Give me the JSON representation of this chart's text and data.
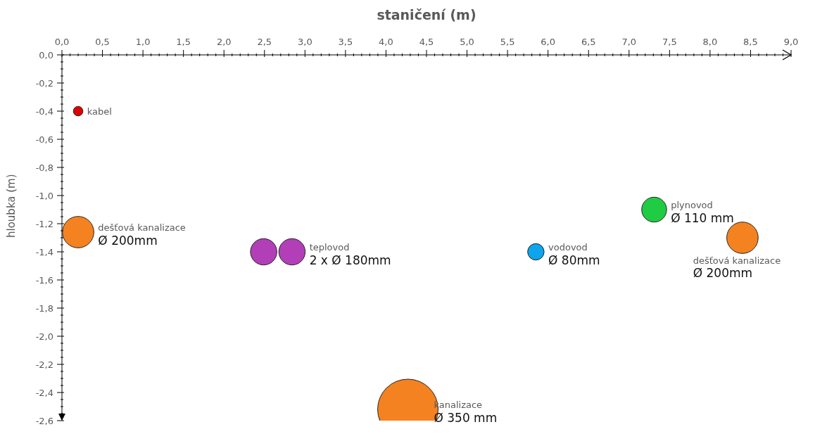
{
  "chart_data": {
    "type": "bubble",
    "title": "staničení (m)",
    "ylabel": "hloubka (m)",
    "x": [
      0.2,
      0.2,
      2.49,
      2.84,
      4.27,
      5.85,
      7.31,
      8.4
    ],
    "values": [
      -0.4,
      -1.26,
      -1.4,
      -1.4,
      -2.52,
      -1.4,
      -1.1,
      -1.3
    ],
    "sizes": [
      0.025,
      0.27,
      0.19,
      0.19,
      1,
      0.074,
      0.17,
      0.27
    ],
    "colors": [
      "#e00000",
      "#f58220",
      "#b23fb8",
      "#b23fb8",
      "#f58220",
      "#0ea5ec",
      "#1fcc44",
      "#f58220"
    ],
    "xlim": [
      0,
      9
    ],
    "xticks": [
      {
        "value": 0,
        "label": "0,0"
      },
      {
        "value": 0.1,
        "label": null
      },
      {
        "value": 0.2,
        "label": null
      },
      {
        "value": 0.3,
        "label": null
      },
      {
        "value": 0.4,
        "label": null
      },
      {
        "value": 0.5,
        "label": "0,5"
      },
      {
        "value": 0.6,
        "label": null
      },
      {
        "value": 0.7,
        "label": null
      },
      {
        "value": 0.8,
        "label": null
      },
      {
        "value": 0.9,
        "label": null
      },
      {
        "value": 1,
        "label": "1,0"
      },
      {
        "value": 1.1,
        "label": null
      },
      {
        "value": 1.2,
        "label": null
      },
      {
        "value": 1.3,
        "label": null
      },
      {
        "value": 1.4,
        "label": null
      },
      {
        "value": 1.5,
        "label": "1,5"
      },
      {
        "value": 1.6,
        "label": null
      },
      {
        "value": 1.7,
        "label": null
      },
      {
        "value": 1.8,
        "label": null
      },
      {
        "value": 1.9,
        "label": null
      },
      {
        "value": 2,
        "label": "2,0"
      },
      {
        "value": 2.1,
        "label": null
      },
      {
        "value": 2.2,
        "label": null
      },
      {
        "value": 2.3,
        "label": null
      },
      {
        "value": 2.4,
        "label": null
      },
      {
        "value": 2.5,
        "label": "2,5"
      },
      {
        "value": 2.6,
        "label": null
      },
      {
        "value": 2.7,
        "label": null
      },
      {
        "value": 2.8,
        "label": null
      },
      {
        "value": 2.9,
        "label": null
      },
      {
        "value": 3,
        "label": "3,0"
      },
      {
        "value": 3.1,
        "label": null
      },
      {
        "value": 3.2,
        "label": null
      },
      {
        "value": 3.3,
        "label": null
      },
      {
        "value": 3.4,
        "label": null
      },
      {
        "value": 3.5,
        "label": "3,5"
      },
      {
        "value": 3.6,
        "label": null
      },
      {
        "value": 3.7,
        "label": null
      },
      {
        "value": 3.8,
        "label": null
      },
      {
        "value": 3.9,
        "label": null
      },
      {
        "value": 4,
        "label": "4,0"
      },
      {
        "value": 4.1,
        "label": null
      },
      {
        "value": 4.2,
        "label": null
      },
      {
        "value": 4.3,
        "label": null
      },
      {
        "value": 4.4,
        "label": null
      },
      {
        "value": 4.5,
        "label": "4,5"
      },
      {
        "value": 4.6,
        "label": null
      },
      {
        "value": 4.7,
        "label": null
      },
      {
        "value": 4.8,
        "label": null
      },
      {
        "value": 4.9,
        "label": null
      },
      {
        "value": 5,
        "label": "5,0"
      },
      {
        "value": 5.1,
        "label": null
      },
      {
        "value": 5.2,
        "label": null
      },
      {
        "value": 5.3,
        "label": null
      },
      {
        "value": 5.4,
        "label": null
      },
      {
        "value": 5.5,
        "label": "5,5"
      },
      {
        "value": 5.6,
        "label": null
      },
      {
        "value": 5.7,
        "label": null
      },
      {
        "value": 5.8,
        "label": null
      },
      {
        "value": 5.9,
        "label": null
      },
      {
        "value": 6,
        "label": "6,0"
      },
      {
        "value": 6.1,
        "label": null
      },
      {
        "value": 6.2,
        "label": null
      },
      {
        "value": 6.3,
        "label": null
      },
      {
        "value": 6.4,
        "label": null
      },
      {
        "value": 6.5,
        "label": "6,5"
      },
      {
        "value": 6.6,
        "label": null
      },
      {
        "value": 6.7,
        "label": null
      },
      {
        "value": 6.8,
        "label": null
      },
      {
        "value": 6.9,
        "label": null
      },
      {
        "value": 7,
        "label": "7,0"
      },
      {
        "value": 7.1,
        "label": null
      },
      {
        "value": 7.2,
        "label": null
      },
      {
        "value": 7.3,
        "label": null
      },
      {
        "value": 7.4,
        "label": null
      },
      {
        "value": 7.5,
        "label": "7,5"
      },
      {
        "value": 7.6,
        "label": null
      },
      {
        "value": 7.7,
        "label": null
      },
      {
        "value": 7.8,
        "label": null
      },
      {
        "value": 7.9,
        "label": null
      },
      {
        "value": 8,
        "label": "8,0"
      },
      {
        "value": 8.1,
        "label": null
      },
      {
        "value": 8.2,
        "label": null
      },
      {
        "value": 8.3,
        "label": null
      },
      {
        "value": 8.4,
        "label": null
      },
      {
        "value": 8.5,
        "label": "8,5"
      },
      {
        "value": 8.6,
        "label": null
      },
      {
        "value": 8.7,
        "label": null
      },
      {
        "value": 8.8,
        "label": null
      },
      {
        "value": 8.9,
        "label": null
      },
      {
        "value": 9,
        "label": "9,0"
      }
    ],
    "ylim": [
      -2.6,
      0
    ],
    "yticks": [
      {
        "value": 0,
        "label": "0,0"
      },
      {
        "value": -0.05,
        "label": null
      },
      {
        "value": -0.1,
        "label": null
      },
      {
        "value": -0.15,
        "label": null
      },
      {
        "value": -0.2,
        "label": "-0,2"
      },
      {
        "value": -0.25,
        "label": null
      },
      {
        "value": -0.3,
        "label": null
      },
      {
        "value": -0.35,
        "label": null
      },
      {
        "value": -0.4,
        "label": "-0,4"
      },
      {
        "value": -0.45,
        "label": null
      },
      {
        "value": -0.5,
        "label": null
      },
      {
        "value": -0.55,
        "label": null
      },
      {
        "value": -0.6,
        "label": "-0,6"
      },
      {
        "value": -0.65,
        "label": null
      },
      {
        "value": -0.7,
        "label": null
      },
      {
        "value": -0.75,
        "label": null
      },
      {
        "value": -0.8,
        "label": "-0,8"
      },
      {
        "value": -0.85,
        "label": null
      },
      {
        "value": -0.9,
        "label": null
      },
      {
        "value": -0.95,
        "label": null
      },
      {
        "value": -1,
        "label": "-1,0"
      },
      {
        "value": -1.05,
        "label": null
      },
      {
        "value": -1.1,
        "label": null
      },
      {
        "value": -1.15,
        "label": null
      },
      {
        "value": -1.2,
        "label": "-1,2"
      },
      {
        "value": -1.25,
        "label": null
      },
      {
        "value": -1.3,
        "label": null
      },
      {
        "value": -1.35,
        "label": null
      },
      {
        "value": -1.4,
        "label": "-1,4"
      },
      {
        "value": -1.45,
        "label": null
      },
      {
        "value": -1.5,
        "label": null
      },
      {
        "value": -1.55,
        "label": null
      },
      {
        "value": -1.6,
        "label": "-1,6"
      },
      {
        "value": -1.65,
        "label": null
      },
      {
        "value": -1.7,
        "label": null
      },
      {
        "value": -1.75,
        "label": null
      },
      {
        "value": -1.8,
        "label": "-1,8"
      },
      {
        "value": -1.85,
        "label": null
      },
      {
        "value": -1.9,
        "label": null
      },
      {
        "value": -1.95,
        "label": null
      },
      {
        "value": -2,
        "label": "-2,0"
      },
      {
        "value": -2.05,
        "label": null
      },
      {
        "value": -2.1,
        "label": null
      },
      {
        "value": -2.15,
        "label": null
      },
      {
        "value": -2.2,
        "label": "-2,2"
      },
      {
        "value": -2.25,
        "label": null
      },
      {
        "value": -2.3,
        "label": null
      },
      {
        "value": -2.35,
        "label": null
      },
      {
        "value": -2.4,
        "label": "-2,4"
      },
      {
        "value": -2.45,
        "label": null
      },
      {
        "value": -2.5,
        "label": null
      },
      {
        "value": -2.55,
        "label": null
      },
      {
        "value": -2.6,
        "label": "-2,6"
      }
    ],
    "annotations": [
      {
        "text": "dešťová kanalizace",
        "x": 0.2,
        "y": -1.26
      },
      {
        "text": "Ø 200mm",
        "x": 0.2,
        "y": -1.26
      },
      {
        "text": "teplovod",
        "x": 2.84,
        "y": -1.4
      },
      {
        "text": "2 x Ø 180mm",
        "x": 2.84,
        "y": -1.4
      },
      {
        "text": "kanalizace",
        "x": 4.27,
        "y": -2.52
      },
      {
        "text": "Ø 350 mm",
        "x": 4.27,
        "y": -2.52
      },
      {
        "text": "vodovod",
        "x": 5.85,
        "y": -1.4
      },
      {
        "text": "Ø 80mm",
        "x": 5.85,
        "y": -1.4
      },
      {
        "text": "plynovod",
        "x": 7.31,
        "y": -1.1
      },
      {
        "text": "Ø 110 mm",
        "x": 7.31,
        "y": -1.1
      },
      {
        "text": "dešťová kanalizace",
        "x": 8.4,
        "y": -1.3
      },
      {
        "text": "Ø 200mm",
        "x": 8.4,
        "y": -1.3
      },
      {
        "text": "kabel",
        "x": 0.2,
        "y": -0.4
      }
    ]
  }
}
